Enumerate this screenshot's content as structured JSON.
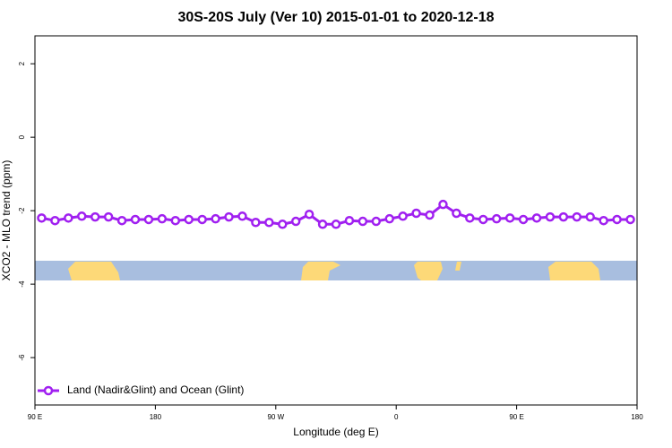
{
  "chart_data": {
    "type": "line",
    "title": "30S-20S July (Ver 10)   2015-01-01 to 2020-12-18",
    "x_label": "Longitude (deg E)",
    "y_label": "XCO2 - MLO trend (ppm)",
    "x": [
      95,
      105,
      115,
      125,
      135,
      145,
      155,
      165,
      175,
      185,
      195,
      205,
      215,
      225,
      235,
      245,
      255,
      265,
      275,
      285,
      295,
      305,
      315,
      325,
      335,
      345,
      355,
      365,
      375,
      385,
      395,
      405,
      415,
      425,
      435,
      445,
      455,
      465,
      475,
      485,
      495,
      505,
      515,
      525,
      535
    ],
    "series": [
      {
        "name": "Land (Nadir&Glint) and Ocean (Glint)",
        "color": "#a020f0",
        "values": [
          -2.2,
          -2.27,
          -2.2,
          -2.15,
          -2.17,
          -2.17,
          -2.27,
          -2.24,
          -2.24,
          -2.22,
          -2.27,
          -2.24,
          -2.24,
          -2.22,
          -2.17,
          -2.15,
          -2.32,
          -2.32,
          -2.37,
          -2.29,
          -2.1,
          -2.37,
          -2.37,
          -2.27,
          -2.29,
          -2.29,
          -2.22,
          -2.15,
          -2.07,
          -2.12,
          -1.83,
          -2.07,
          -2.2,
          -2.24,
          -2.22,
          -2.2,
          -2.24,
          -2.2,
          -2.17,
          -2.17,
          -2.17,
          -2.17,
          -2.27,
          -2.24,
          -2.24
        ]
      }
    ],
    "xlim": [
      90,
      540
    ],
    "xticks": [
      {
        "value": 90,
        "label": "90 E"
      },
      180,
      {
        "value": 270,
        "label": "90 W"
      },
      0,
      {
        "value": 450,
        "label": "90 E"
      },
      {
        "value": 540,
        "label": "180"
      }
    ],
    "ylim": [
      -7.29,
      2.76
    ],
    "yticks": [
      2,
      0,
      -2,
      -4,
      -6
    ],
    "legend": "bottomleft"
  }
}
